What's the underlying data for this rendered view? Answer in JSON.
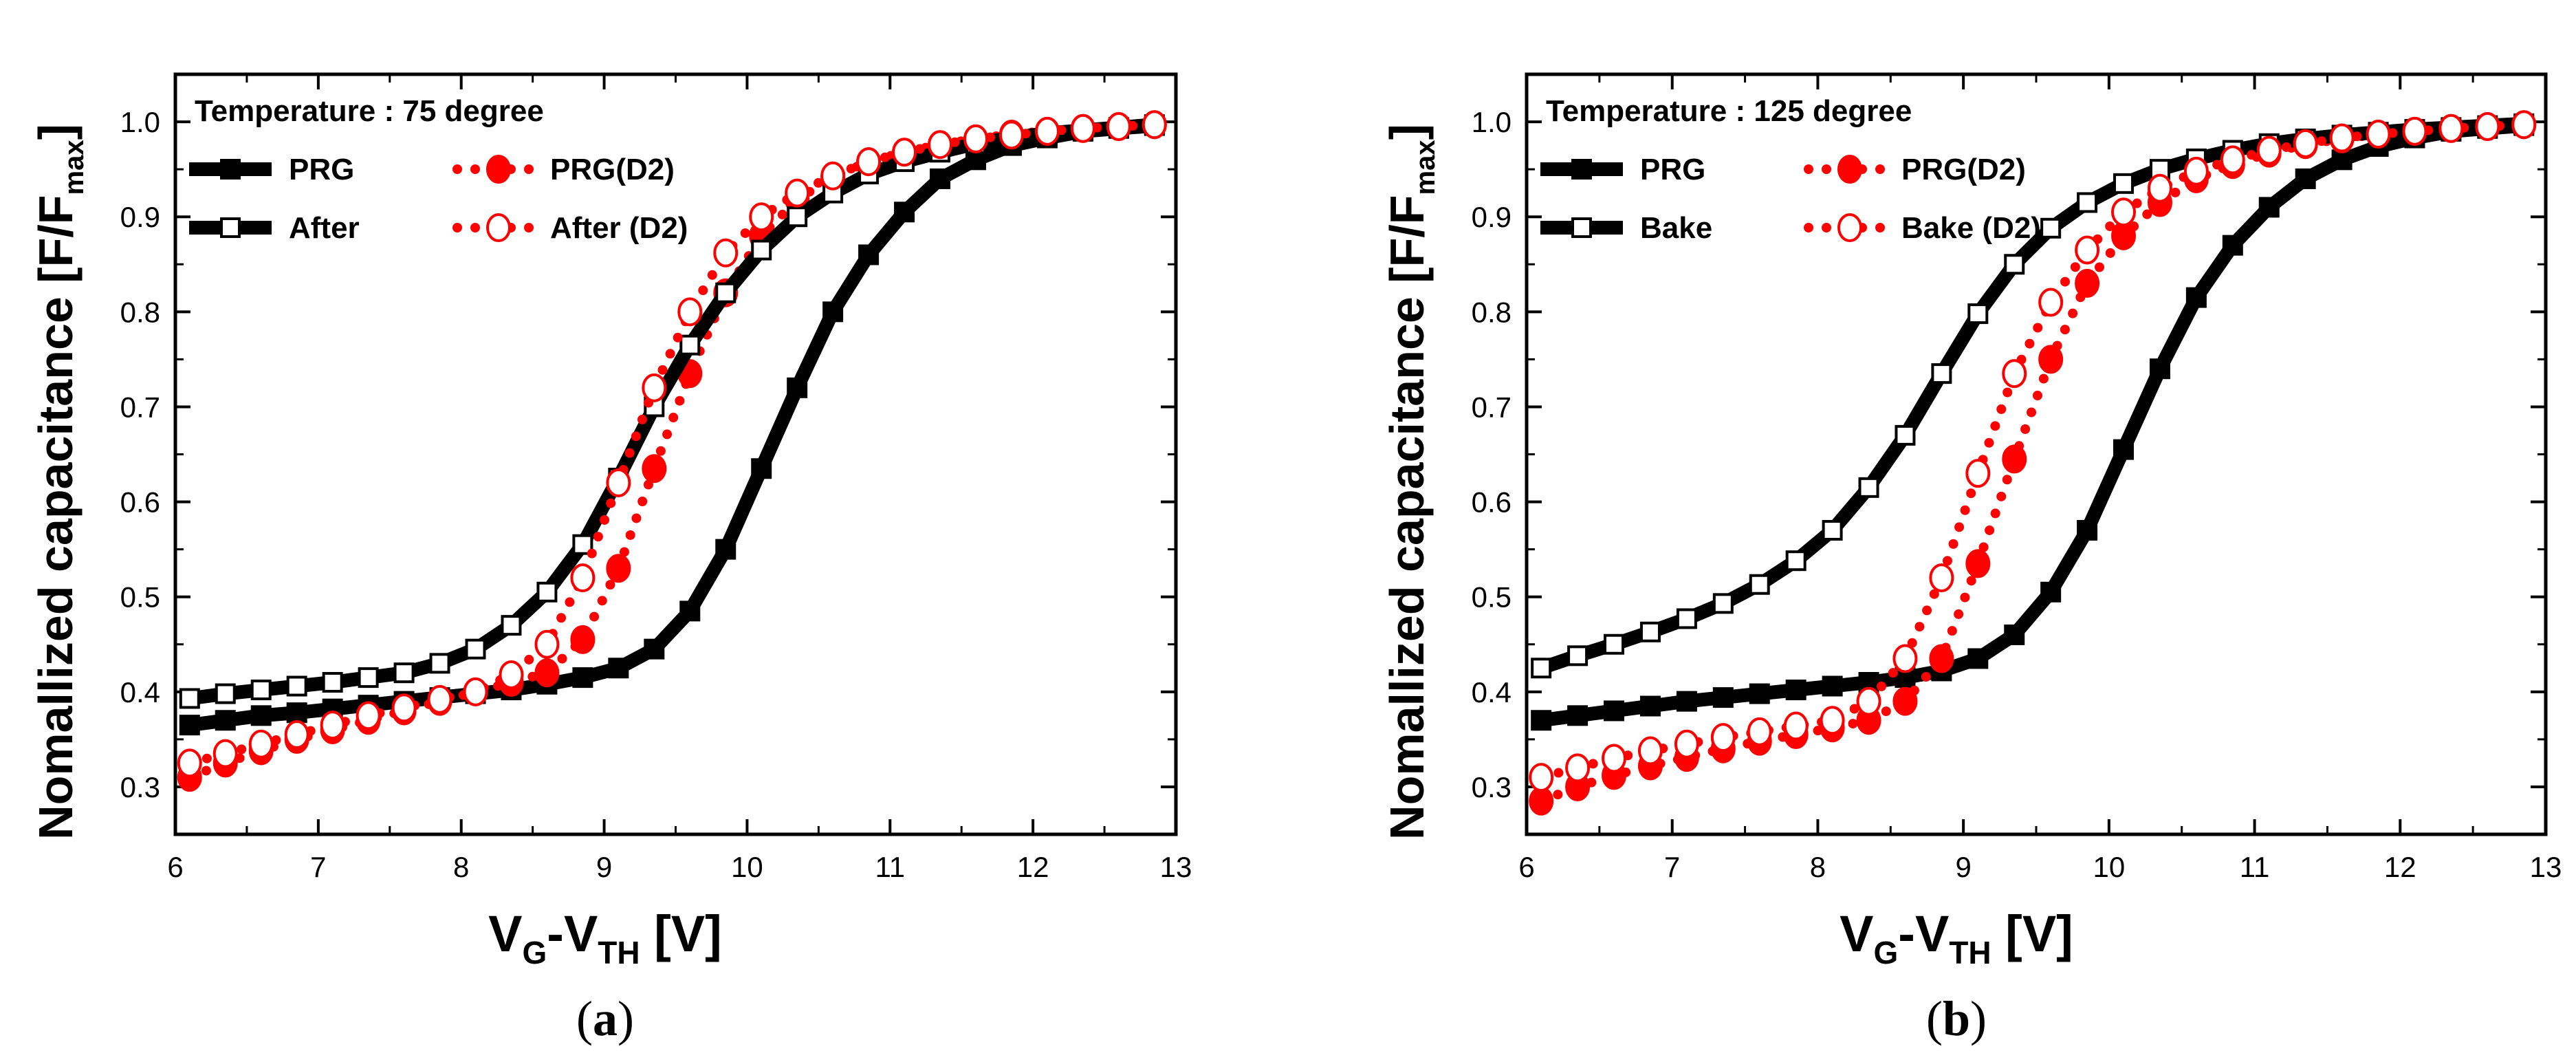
{
  "colors": {
    "black": "#000000",
    "red": "#ff0000",
    "background": "#ffffff"
  },
  "chart_data": [
    {
      "type": "scatter",
      "caption": {
        "open": "(",
        "letter": "a",
        "close": ")"
      },
      "annotation": "Temperature : 75 degree",
      "ylabel": {
        "main": "Nomallized capacitance [F/F",
        "sub": "max",
        "close": "]"
      },
      "xlabel": {
        "main": "V",
        "sub1": "G",
        "mid": "-V",
        "sub2": "TH",
        "tail": " [V]"
      },
      "xlim": [
        6,
        13
      ],
      "ylim": [
        0.25,
        1.05
      ],
      "xticks": [
        "6",
        "7",
        "8",
        "9",
        "10",
        "11",
        "12",
        "13"
      ],
      "yticks": [
        "0.3",
        "0.4",
        "0.5",
        "0.6",
        "0.7",
        "0.8",
        "0.9",
        "1.0"
      ],
      "legend_placement": "top-left",
      "series": [
        {
          "name": "PRG",
          "color": "#000000",
          "line": "solid",
          "marker": "square",
          "filled": true,
          "x": [
            6.1,
            6.35,
            6.6,
            6.85,
            7.1,
            7.35,
            7.6,
            7.85,
            8.1,
            8.35,
            8.6,
            8.85,
            9.1,
            9.35,
            9.6,
            9.85,
            10.1,
            10.35,
            10.6,
            10.85,
            11.1,
            11.35,
            11.6,
            11.85,
            12.1,
            12.35,
            12.6,
            12.85
          ],
          "y": [
            0.365,
            0.37,
            0.375,
            0.378,
            0.382,
            0.386,
            0.39,
            0.394,
            0.398,
            0.402,
            0.408,
            0.415,
            0.425,
            0.445,
            0.485,
            0.55,
            0.635,
            0.72,
            0.8,
            0.86,
            0.905,
            0.94,
            0.96,
            0.975,
            0.983,
            0.99,
            0.993,
            0.996
          ]
        },
        {
          "name": "PRG(D2)",
          "color": "#ff0000",
          "line": "dotted",
          "marker": "circle",
          "filled": true,
          "x": [
            6.1,
            6.35,
            6.6,
            6.85,
            7.1,
            7.35,
            7.6,
            7.85,
            8.1,
            8.35,
            8.6,
            8.85,
            9.1,
            9.35,
            9.6,
            9.85,
            10.1,
            10.35,
            10.6,
            10.85,
            11.1,
            11.35,
            11.6,
            11.85,
            12.1,
            12.35,
            12.6,
            12.85
          ],
          "y": [
            0.31,
            0.325,
            0.338,
            0.35,
            0.36,
            0.37,
            0.38,
            0.39,
            0.4,
            0.41,
            0.42,
            0.455,
            0.53,
            0.635,
            0.735,
            0.82,
            0.88,
            0.918,
            0.942,
            0.958,
            0.968,
            0.976,
            0.982,
            0.987,
            0.99,
            0.993,
            0.995,
            0.997
          ]
        },
        {
          "name": "After",
          "color": "#000000",
          "line": "solid",
          "marker": "square",
          "filled": false,
          "x": [
            6.1,
            6.35,
            6.6,
            6.85,
            7.1,
            7.35,
            7.6,
            7.85,
            8.1,
            8.35,
            8.6,
            8.85,
            9.1,
            9.35,
            9.6,
            9.85,
            10.1,
            10.35,
            10.6,
            10.85,
            11.1,
            11.35,
            11.6,
            11.85,
            12.1,
            12.35,
            12.6,
            12.85
          ],
          "y": [
            0.393,
            0.398,
            0.402,
            0.406,
            0.41,
            0.415,
            0.42,
            0.43,
            0.445,
            0.47,
            0.505,
            0.555,
            0.625,
            0.7,
            0.765,
            0.82,
            0.865,
            0.9,
            0.925,
            0.945,
            0.958,
            0.968,
            0.977,
            0.983,
            0.988,
            0.991,
            0.994,
            0.997
          ]
        },
        {
          "name": "After (D2)",
          "color": "#ff0000",
          "line": "dotted",
          "marker": "circle",
          "filled": false,
          "x": [
            6.1,
            6.35,
            6.6,
            6.85,
            7.1,
            7.35,
            7.6,
            7.85,
            8.1,
            8.35,
            8.6,
            8.85,
            9.1,
            9.35,
            9.6,
            9.85,
            10.1,
            10.35,
            10.6,
            10.85,
            11.1,
            11.35,
            11.6,
            11.85,
            12.1,
            12.35,
            12.6,
            12.85
          ],
          "y": [
            0.325,
            0.335,
            0.345,
            0.355,
            0.365,
            0.375,
            0.383,
            0.392,
            0.4,
            0.418,
            0.45,
            0.52,
            0.62,
            0.72,
            0.8,
            0.862,
            0.9,
            0.925,
            0.943,
            0.958,
            0.968,
            0.976,
            0.982,
            0.986,
            0.99,
            0.993,
            0.995,
            0.997
          ]
        }
      ]
    },
    {
      "type": "scatter",
      "caption": {
        "open": "(",
        "letter": "b",
        "close": ")"
      },
      "annotation": "Temperature : 125 degree",
      "ylabel": {
        "main": "Nomallized capacitance [F/F",
        "sub": "max",
        "close": "]"
      },
      "xlabel": {
        "main": "V",
        "sub1": "G",
        "mid": "-V",
        "sub2": "TH",
        "tail": " [V]"
      },
      "xlim": [
        6,
        13
      ],
      "ylim": [
        0.25,
        1.05
      ],
      "xticks": [
        "6",
        "7",
        "8",
        "9",
        "10",
        "11",
        "12",
        "13"
      ],
      "yticks": [
        "0.3",
        "0.4",
        "0.5",
        "0.6",
        "0.7",
        "0.8",
        "0.9",
        "1.0"
      ],
      "legend_placement": "top-left",
      "series": [
        {
          "name": "PRG",
          "color": "#000000",
          "line": "solid",
          "marker": "square",
          "filled": true,
          "x": [
            6.1,
            6.35,
            6.6,
            6.85,
            7.1,
            7.35,
            7.6,
            7.85,
            8.1,
            8.35,
            8.6,
            8.85,
            9.1,
            9.35,
            9.6,
            9.85,
            10.1,
            10.35,
            10.6,
            10.85,
            11.1,
            11.35,
            11.6,
            11.85,
            12.1,
            12.35,
            12.6,
            12.85
          ],
          "y": [
            0.37,
            0.375,
            0.38,
            0.385,
            0.39,
            0.394,
            0.398,
            0.402,
            0.406,
            0.41,
            0.415,
            0.422,
            0.435,
            0.46,
            0.505,
            0.57,
            0.655,
            0.74,
            0.815,
            0.87,
            0.91,
            0.94,
            0.96,
            0.974,
            0.983,
            0.99,
            0.993,
            0.996
          ]
        },
        {
          "name": "PRG(D2)",
          "color": "#ff0000",
          "line": "dotted",
          "marker": "circle",
          "filled": true,
          "x": [
            6.1,
            6.35,
            6.6,
            6.85,
            7.1,
            7.35,
            7.6,
            7.85,
            8.1,
            8.35,
            8.6,
            8.85,
            9.1,
            9.35,
            9.6,
            9.85,
            10.1,
            10.35,
            10.6,
            10.85,
            11.1,
            11.35,
            11.6,
            11.85,
            12.1,
            12.35,
            12.6,
            12.85
          ],
          "y": [
            0.285,
            0.3,
            0.312,
            0.322,
            0.331,
            0.34,
            0.348,
            0.355,
            0.362,
            0.37,
            0.39,
            0.435,
            0.535,
            0.645,
            0.75,
            0.83,
            0.88,
            0.915,
            0.94,
            0.955,
            0.967,
            0.976,
            0.982,
            0.987,
            0.99,
            0.993,
            0.995,
            0.997
          ]
        },
        {
          "name": "Bake",
          "color": "#000000",
          "line": "solid",
          "marker": "square",
          "filled": false,
          "x": [
            6.1,
            6.35,
            6.6,
            6.85,
            7.1,
            7.35,
            7.6,
            7.85,
            8.1,
            8.35,
            8.6,
            8.85,
            9.1,
            9.35,
            9.6,
            9.85,
            10.1,
            10.35,
            10.6,
            10.85,
            11.1,
            11.35,
            11.6,
            11.85,
            12.1,
            12.35,
            12.6,
            12.85
          ],
          "y": [
            0.425,
            0.438,
            0.45,
            0.463,
            0.477,
            0.493,
            0.513,
            0.538,
            0.57,
            0.615,
            0.67,
            0.735,
            0.798,
            0.85,
            0.888,
            0.915,
            0.935,
            0.95,
            0.961,
            0.97,
            0.977,
            0.982,
            0.986,
            0.989,
            0.992,
            0.994,
            0.996,
            0.998
          ]
        },
        {
          "name": "Bake (D2)",
          "color": "#ff0000",
          "line": "dotted",
          "marker": "circle",
          "filled": false,
          "x": [
            6.1,
            6.35,
            6.6,
            6.85,
            7.1,
            7.35,
            7.6,
            7.85,
            8.1,
            8.35,
            8.6,
            8.85,
            9.1,
            9.35,
            9.6,
            9.85,
            10.1,
            10.35,
            10.6,
            10.85,
            11.1,
            11.35,
            11.6,
            11.85,
            12.1,
            12.35,
            12.6,
            12.85
          ],
          "y": [
            0.31,
            0.32,
            0.33,
            0.338,
            0.345,
            0.352,
            0.358,
            0.364,
            0.37,
            0.39,
            0.435,
            0.52,
            0.63,
            0.735,
            0.81,
            0.865,
            0.905,
            0.93,
            0.948,
            0.96,
            0.97,
            0.977,
            0.983,
            0.987,
            0.99,
            0.993,
            0.995,
            0.997
          ]
        }
      ]
    }
  ]
}
